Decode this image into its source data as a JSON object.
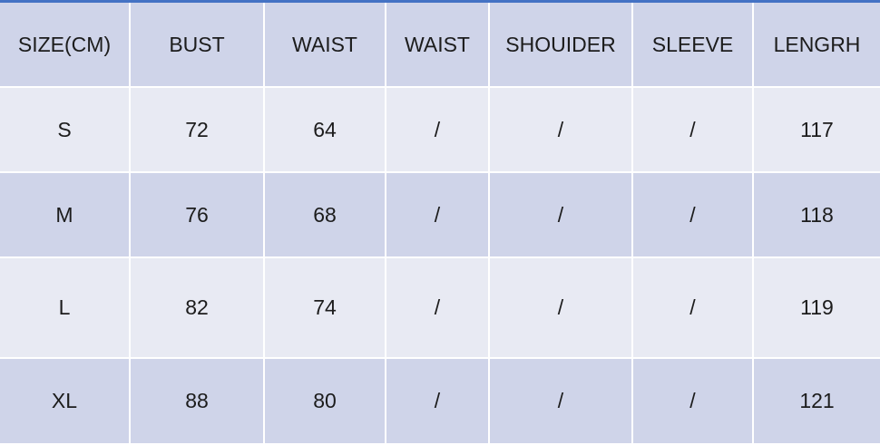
{
  "table": {
    "header": [
      "SIZE(CM)",
      "BUST",
      "WAIST",
      "WAIST",
      "SHOUIDER",
      "SLEEVE",
      "LENGRH"
    ],
    "rows": [
      [
        "S",
        "72",
        "64",
        "/",
        "/",
        "/",
        "117"
      ],
      [
        "M",
        "76",
        "68",
        "/",
        "/",
        "/",
        "118"
      ],
      [
        "L",
        "82",
        "74",
        "/",
        "/",
        "/",
        "119"
      ],
      [
        "XL",
        "88",
        "80",
        "/",
        "/",
        "/",
        "121"
      ]
    ]
  }
}
